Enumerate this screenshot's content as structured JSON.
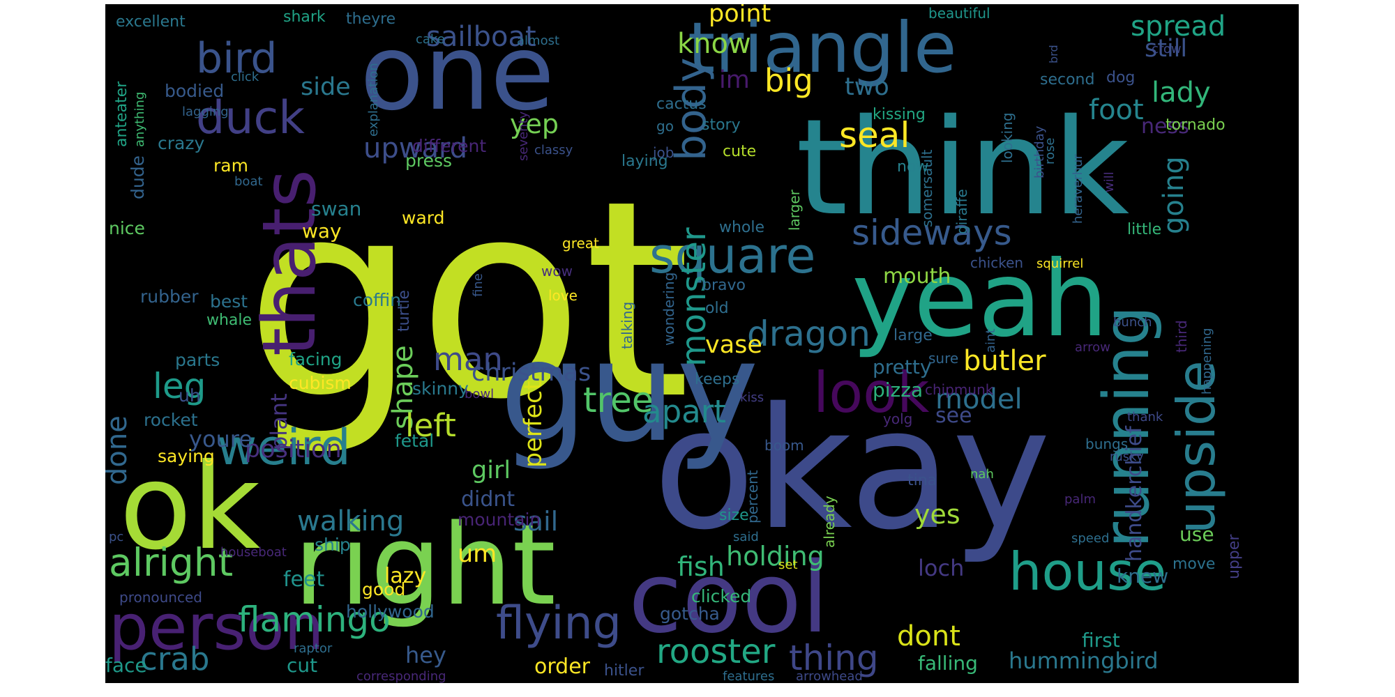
{
  "wordcloud": {
    "background": "#000000",
    "palette": "viridis",
    "words": [
      {
        "text": "got",
        "color": "#c2df23"
      },
      {
        "text": "okay",
        "color": "#3d4a8a"
      },
      {
        "text": "think",
        "color": "#25848e"
      },
      {
        "text": "right",
        "color": "#7ad151"
      },
      {
        "text": "guy",
        "color": "#38588c"
      },
      {
        "text": "one",
        "color": "#3b528b"
      },
      {
        "text": "thats",
        "color": "#481f70"
      },
      {
        "text": "triangle",
        "color": "#31668e"
      },
      {
        "text": "ok",
        "color": "#a5db36"
      },
      {
        "text": "yeah",
        "color": "#20a386"
      },
      {
        "text": "cool",
        "color": "#443983"
      },
      {
        "text": "person",
        "color": "#482173"
      },
      {
        "text": "running",
        "color": "#26828e"
      },
      {
        "text": "upside",
        "color": "#287d8e"
      },
      {
        "text": "square",
        "color": "#2c728e"
      },
      {
        "text": "weird",
        "color": "#277f8e"
      },
      {
        "text": "bird",
        "color": "#3a538b"
      },
      {
        "text": "duck",
        "color": "#424086"
      },
      {
        "text": "body",
        "color": "#33638d"
      },
      {
        "text": "house",
        "color": "#1f9e89"
      },
      {
        "text": "look",
        "color": "#46085c"
      },
      {
        "text": "flying",
        "color": "#3e4c8a"
      },
      {
        "text": "sideways",
        "color": "#375a8c"
      },
      {
        "text": "monster",
        "color": "#1f988b"
      },
      {
        "text": "alright",
        "color": "#5ec962"
      },
      {
        "text": "flamingo",
        "color": "#2db27d"
      },
      {
        "text": "dragon",
        "color": "#2d708e"
      },
      {
        "text": "rooster",
        "color": "#22a884"
      },
      {
        "text": "sailboat",
        "color": "#3b528b"
      },
      {
        "text": "tree",
        "color": "#52c569"
      },
      {
        "text": "spread",
        "color": "#20a486"
      },
      {
        "text": "seal",
        "color": "#fde725"
      },
      {
        "text": "crab",
        "color": "#2a788e"
      },
      {
        "text": "thing",
        "color": "#3f4788"
      },
      {
        "text": "going",
        "color": "#26818e"
      },
      {
        "text": "shape",
        "color": "#6ccd5a"
      },
      {
        "text": "model",
        "color": "#2d708e"
      },
      {
        "text": "leg",
        "color": "#1e9b8a"
      },
      {
        "text": "upward",
        "color": "#3d4e8a"
      },
      {
        "text": "foot",
        "color": "#25858e"
      },
      {
        "text": "lady",
        "color": "#32b67a"
      },
      {
        "text": "butler",
        "color": "#fde725"
      },
      {
        "text": "apart",
        "color": "#238a8d"
      },
      {
        "text": "man",
        "color": "#3e4a89"
      },
      {
        "text": "big",
        "color": "#fde725"
      },
      {
        "text": "know",
        "color": "#8bd646"
      },
      {
        "text": "left",
        "color": "#b5de2b"
      },
      {
        "text": "done",
        "color": "#31688e"
      },
      {
        "text": "position",
        "color": "#472f7d"
      },
      {
        "text": "dont",
        "color": "#dae319"
      },
      {
        "text": "walking",
        "color": "#2a788e"
      },
      {
        "text": "christmas",
        "color": "#3b528b"
      },
      {
        "text": "holding",
        "color": "#3fbc73"
      },
      {
        "text": "perfect",
        "color": "#dde318"
      },
      {
        "text": "hummingbird",
        "color": "#2a788e"
      },
      {
        "text": "fish",
        "color": "#31b57b"
      },
      {
        "text": "vase",
        "color": "#fde725"
      },
      {
        "text": "loch",
        "color": "#443983"
      },
      {
        "text": "yes",
        "color": "#a0da39"
      },
      {
        "text": "plant",
        "color": "#453581"
      },
      {
        "text": "sail",
        "color": "#31688e"
      },
      {
        "text": "handkerchief",
        "color": "#3e4c8a"
      },
      {
        "text": "side",
        "color": "#2a788e"
      },
      {
        "text": "yep",
        "color": "#75d054"
      },
      {
        "text": "im",
        "color": "#481a6c"
      },
      {
        "text": "two",
        "color": "#2e6f8e"
      },
      {
        "text": "still",
        "color": "#3b528b"
      },
      {
        "text": "point",
        "color": "#fde725"
      },
      {
        "text": "girl",
        "color": "#5ec962"
      },
      {
        "text": "youre",
        "color": "#38588c"
      },
      {
        "text": "didnt",
        "color": "#3a548c"
      },
      {
        "text": "see",
        "color": "#3e4a89"
      },
      {
        "text": "ness",
        "color": "#482878"
      },
      {
        "text": "mouth",
        "color": "#8fd744"
      },
      {
        "text": "hey",
        "color": "#375a8c"
      },
      {
        "text": "um",
        "color": "#fde725"
      },
      {
        "text": "cut",
        "color": "#1f988b"
      },
      {
        "text": "feet",
        "color": "#20928c"
      },
      {
        "text": "lazy",
        "color": "#fde725"
      },
      {
        "text": "face",
        "color": "#1f9a8a"
      },
      {
        "text": "order",
        "color": "#fde725"
      },
      {
        "text": "falling",
        "color": "#38b977"
      },
      {
        "text": "pretty",
        "color": "#2e6e8e"
      },
      {
        "text": "pizza",
        "color": "#2db27d"
      },
      {
        "text": "upper",
        "color": "#433e85"
      },
      {
        "text": "knew",
        "color": "#2e6f8e"
      },
      {
        "text": "use",
        "color": "#6ccd5a"
      },
      {
        "text": "move",
        "color": "#2c728e"
      },
      {
        "text": "first",
        "color": "#1f9a8a"
      },
      {
        "text": "gotcha",
        "color": "#375b8d"
      },
      {
        "text": "mountain",
        "color": "#482475"
      },
      {
        "text": "ship",
        "color": "#26828e"
      },
      {
        "text": "good",
        "color": "#fde725"
      },
      {
        "text": "hollywood",
        "color": "#31668e"
      },
      {
        "text": "clicked",
        "color": "#35b779"
      },
      {
        "text": "skinny",
        "color": "#297a8e"
      },
      {
        "text": "fetal",
        "color": "#1f988b"
      },
      {
        "text": "saying",
        "color": "#fde725"
      },
      {
        "text": "rocket",
        "color": "#2c718e"
      },
      {
        "text": "parts",
        "color": "#2a788e"
      },
      {
        "text": "cubism",
        "color": "#fde725"
      },
      {
        "text": "facing",
        "color": "#20a486"
      },
      {
        "text": "coffin",
        "color": "#29798e"
      },
      {
        "text": "best",
        "color": "#2c728e"
      },
      {
        "text": "whale",
        "color": "#3fbc73"
      },
      {
        "text": "rubber",
        "color": "#33638d"
      },
      {
        "text": "turtle",
        "color": "#3c4f8a"
      },
      {
        "text": "uh",
        "color": "#3b528b"
      },
      {
        "text": "nice",
        "color": "#5ec962"
      },
      {
        "text": "swan",
        "color": "#26818e"
      },
      {
        "text": "way",
        "color": "#fde725"
      },
      {
        "text": "ward",
        "color": "#fde725"
      },
      {
        "text": "press",
        "color": "#5ec962"
      },
      {
        "text": "different",
        "color": "#482576"
      },
      {
        "text": "crazy",
        "color": "#2a788e"
      },
      {
        "text": "ram",
        "color": "#fde725"
      },
      {
        "text": "dude",
        "color": "#33638d"
      },
      {
        "text": "bodied",
        "color": "#375a8c"
      },
      {
        "text": "anteater",
        "color": "#20a486"
      },
      {
        "text": "anything",
        "color": "#3fbc73"
      },
      {
        "text": "excellent",
        "color": "#2a788e"
      },
      {
        "text": "shark",
        "color": "#20a386"
      },
      {
        "text": "theyre",
        "color": "#2e6e8e"
      },
      {
        "text": "cake",
        "color": "#2c718e"
      },
      {
        "text": "almost",
        "color": "#2e6f8e"
      },
      {
        "text": "beautiful",
        "color": "#1f968b"
      },
      {
        "text": "crow",
        "color": "#3e4a89"
      },
      {
        "text": "dog",
        "color": "#3b528b"
      },
      {
        "text": "second",
        "color": "#2e6e8e"
      },
      {
        "text": "tornado",
        "color": "#7ad151"
      },
      {
        "text": "kissing",
        "color": "#22a884"
      },
      {
        "text": "story",
        "color": "#2a788e"
      },
      {
        "text": "cute",
        "color": "#b5de2b"
      },
      {
        "text": "looking",
        "color": "#2e6f8e"
      },
      {
        "text": "birthday",
        "color": "#3b528b"
      },
      {
        "text": "rose",
        "color": "#2d708e"
      },
      {
        "text": "heraverhur",
        "color": "#33638d"
      },
      {
        "text": "will",
        "color": "#472d7b"
      },
      {
        "text": "little",
        "color": "#35b779"
      },
      {
        "text": "giraffe",
        "color": "#29798e"
      },
      {
        "text": "somersault",
        "color": "#2d708e"
      },
      {
        "text": "now",
        "color": "#26828e"
      },
      {
        "text": "larger",
        "color": "#5ec962"
      },
      {
        "text": "whole",
        "color": "#2e6f8e"
      },
      {
        "text": "bravo",
        "color": "#31688e"
      },
      {
        "text": "old",
        "color": "#2e6e8e"
      },
      {
        "text": "wondering",
        "color": "#32658e"
      },
      {
        "text": "talking",
        "color": "#31668e"
      },
      {
        "text": "great",
        "color": "#fde725"
      },
      {
        "text": "wow",
        "color": "#472f7d"
      },
      {
        "text": "love",
        "color": "#fde725"
      },
      {
        "text": "fine",
        "color": "#38588c"
      },
      {
        "text": "chicken",
        "color": "#3b528b"
      },
      {
        "text": "squirrel",
        "color": "#fde725"
      },
      {
        "text": "bunch",
        "color": "#3b528b"
      },
      {
        "text": "arrow",
        "color": "#482878"
      },
      {
        "text": "happening",
        "color": "#31688e"
      },
      {
        "text": "third",
        "color": "#482878"
      },
      {
        "text": "aint",
        "color": "#33638d"
      },
      {
        "text": "large",
        "color": "#31688e"
      },
      {
        "text": "sure",
        "color": "#31668e"
      },
      {
        "text": "chipmunk",
        "color": "#482475"
      },
      {
        "text": "kiss",
        "color": "#433e85"
      },
      {
        "text": "keeps",
        "color": "#2e6f8e"
      },
      {
        "text": "bowl",
        "color": "#482878"
      },
      {
        "text": "boom",
        "color": "#38588c"
      },
      {
        "text": "thank",
        "color": "#3e4a89"
      },
      {
        "text": "bungs",
        "color": "#2e6e8e"
      },
      {
        "text": "yolg",
        "color": "#482878"
      },
      {
        "text": "already",
        "color": "#7ad151"
      },
      {
        "text": "tina",
        "color": "#3b528b"
      },
      {
        "text": "nah",
        "color": "#5ec962"
      },
      {
        "text": "rusky",
        "color": "#3b528b"
      },
      {
        "text": "percent",
        "color": "#31688e"
      },
      {
        "text": "size",
        "color": "#1f968b"
      },
      {
        "text": "said",
        "color": "#2e6e8e"
      },
      {
        "text": "palm",
        "color": "#482878"
      },
      {
        "text": "speed",
        "color": "#2e6f8e"
      },
      {
        "text": "set",
        "color": "#dae319"
      },
      {
        "text": "houseboat",
        "color": "#482878"
      },
      {
        "text": "pc",
        "color": "#3b528b"
      },
      {
        "text": "pronounced",
        "color": "#3e4a89"
      },
      {
        "text": "raptor",
        "color": "#2e6e8e"
      },
      {
        "text": "corresponding",
        "color": "#482878"
      },
      {
        "text": "hitler",
        "color": "#3b528b"
      },
      {
        "text": "features",
        "color": "#2e6e8e"
      },
      {
        "text": "arrowhead",
        "color": "#3e4a89"
      },
      {
        "text": "lagging",
        "color": "#33638d"
      },
      {
        "text": "explanation",
        "color": "#2e6e8e"
      },
      {
        "text": "seventy",
        "color": "#482878"
      },
      {
        "text": "click",
        "color": "#2e6e8e"
      },
      {
        "text": "classy",
        "color": "#3b528b"
      },
      {
        "text": "go",
        "color": "#2e6f8e"
      },
      {
        "text": "job",
        "color": "#3b528b"
      },
      {
        "text": "cactus",
        "color": "#2e6e8e"
      },
      {
        "text": "laying",
        "color": "#2a788e"
      },
      {
        "text": "boat",
        "color": "#31688e"
      },
      {
        "text": "brd",
        "color": "#3b528b"
      }
    ]
  }
}
